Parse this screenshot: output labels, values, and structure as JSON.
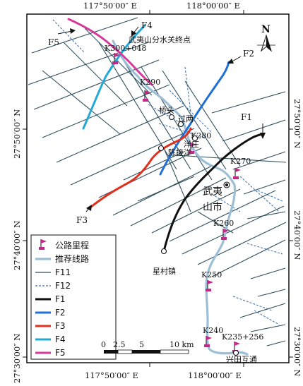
{
  "map": {
    "top_labels": [
      "117°50′00″ E",
      "118°00′00″ E"
    ],
    "bottom_labels": [
      "117°50′00″ E",
      "118°00′00″ E"
    ],
    "left_labels": [
      "27°50′00″ N",
      "27°40′00″ N",
      "27°30′00″ N"
    ],
    "right_labels": [
      "27°50′00″ N",
      "27°40′00″ N",
      "27°30′00″ N"
    ],
    "north": "N"
  },
  "places": {
    "wuyishan_endpoint": "武夷山分水关终点",
    "qiaotou": "桥头",
    "guoliang": "过两",
    "yangzhuang": "洋庄",
    "chenjieyang": "陈接洋",
    "wuyi": "武夷",
    "shanshi": "山市",
    "xingcun": "星村镇",
    "xingtian": "兴田互通"
  },
  "mileposts": {
    "k300": "K300+048",
    "k290": "K290",
    "k280": "K280",
    "k270": "K270",
    "k260": "K260",
    "k250": "K250",
    "k240": "K240",
    "k235": "K235+256"
  },
  "faults": {
    "f1": "F1",
    "f2": "F2",
    "f3": "F3",
    "f4": "F4",
    "f5": "F5"
  },
  "colors": {
    "route": "#9dbfd6",
    "f11": "#2f4f5e",
    "f12": "#3a6aa8",
    "f1": "#111111",
    "f2": "#1f6fd6",
    "f3": "#e0301e",
    "f4": "#22a9d6",
    "f5": "#d63a9a",
    "flag": "#c0288a"
  },
  "legend": {
    "items": [
      {
        "label": "公路里程",
        "symbol": "flag"
      },
      {
        "label": "推荐线路",
        "symbol": "route"
      },
      {
        "label": "F11",
        "symbol": "f11"
      },
      {
        "label": "F12",
        "symbol": "f12"
      },
      {
        "label": "F1",
        "symbol": "f1"
      },
      {
        "label": "F2",
        "symbol": "f2"
      },
      {
        "label": "F3",
        "symbol": "f3"
      },
      {
        "label": "F4",
        "symbol": "f4"
      },
      {
        "label": "F5",
        "symbol": "f5"
      }
    ]
  },
  "scale": {
    "ticks": [
      "0",
      "2.5",
      "5",
      "10 km"
    ]
  }
}
